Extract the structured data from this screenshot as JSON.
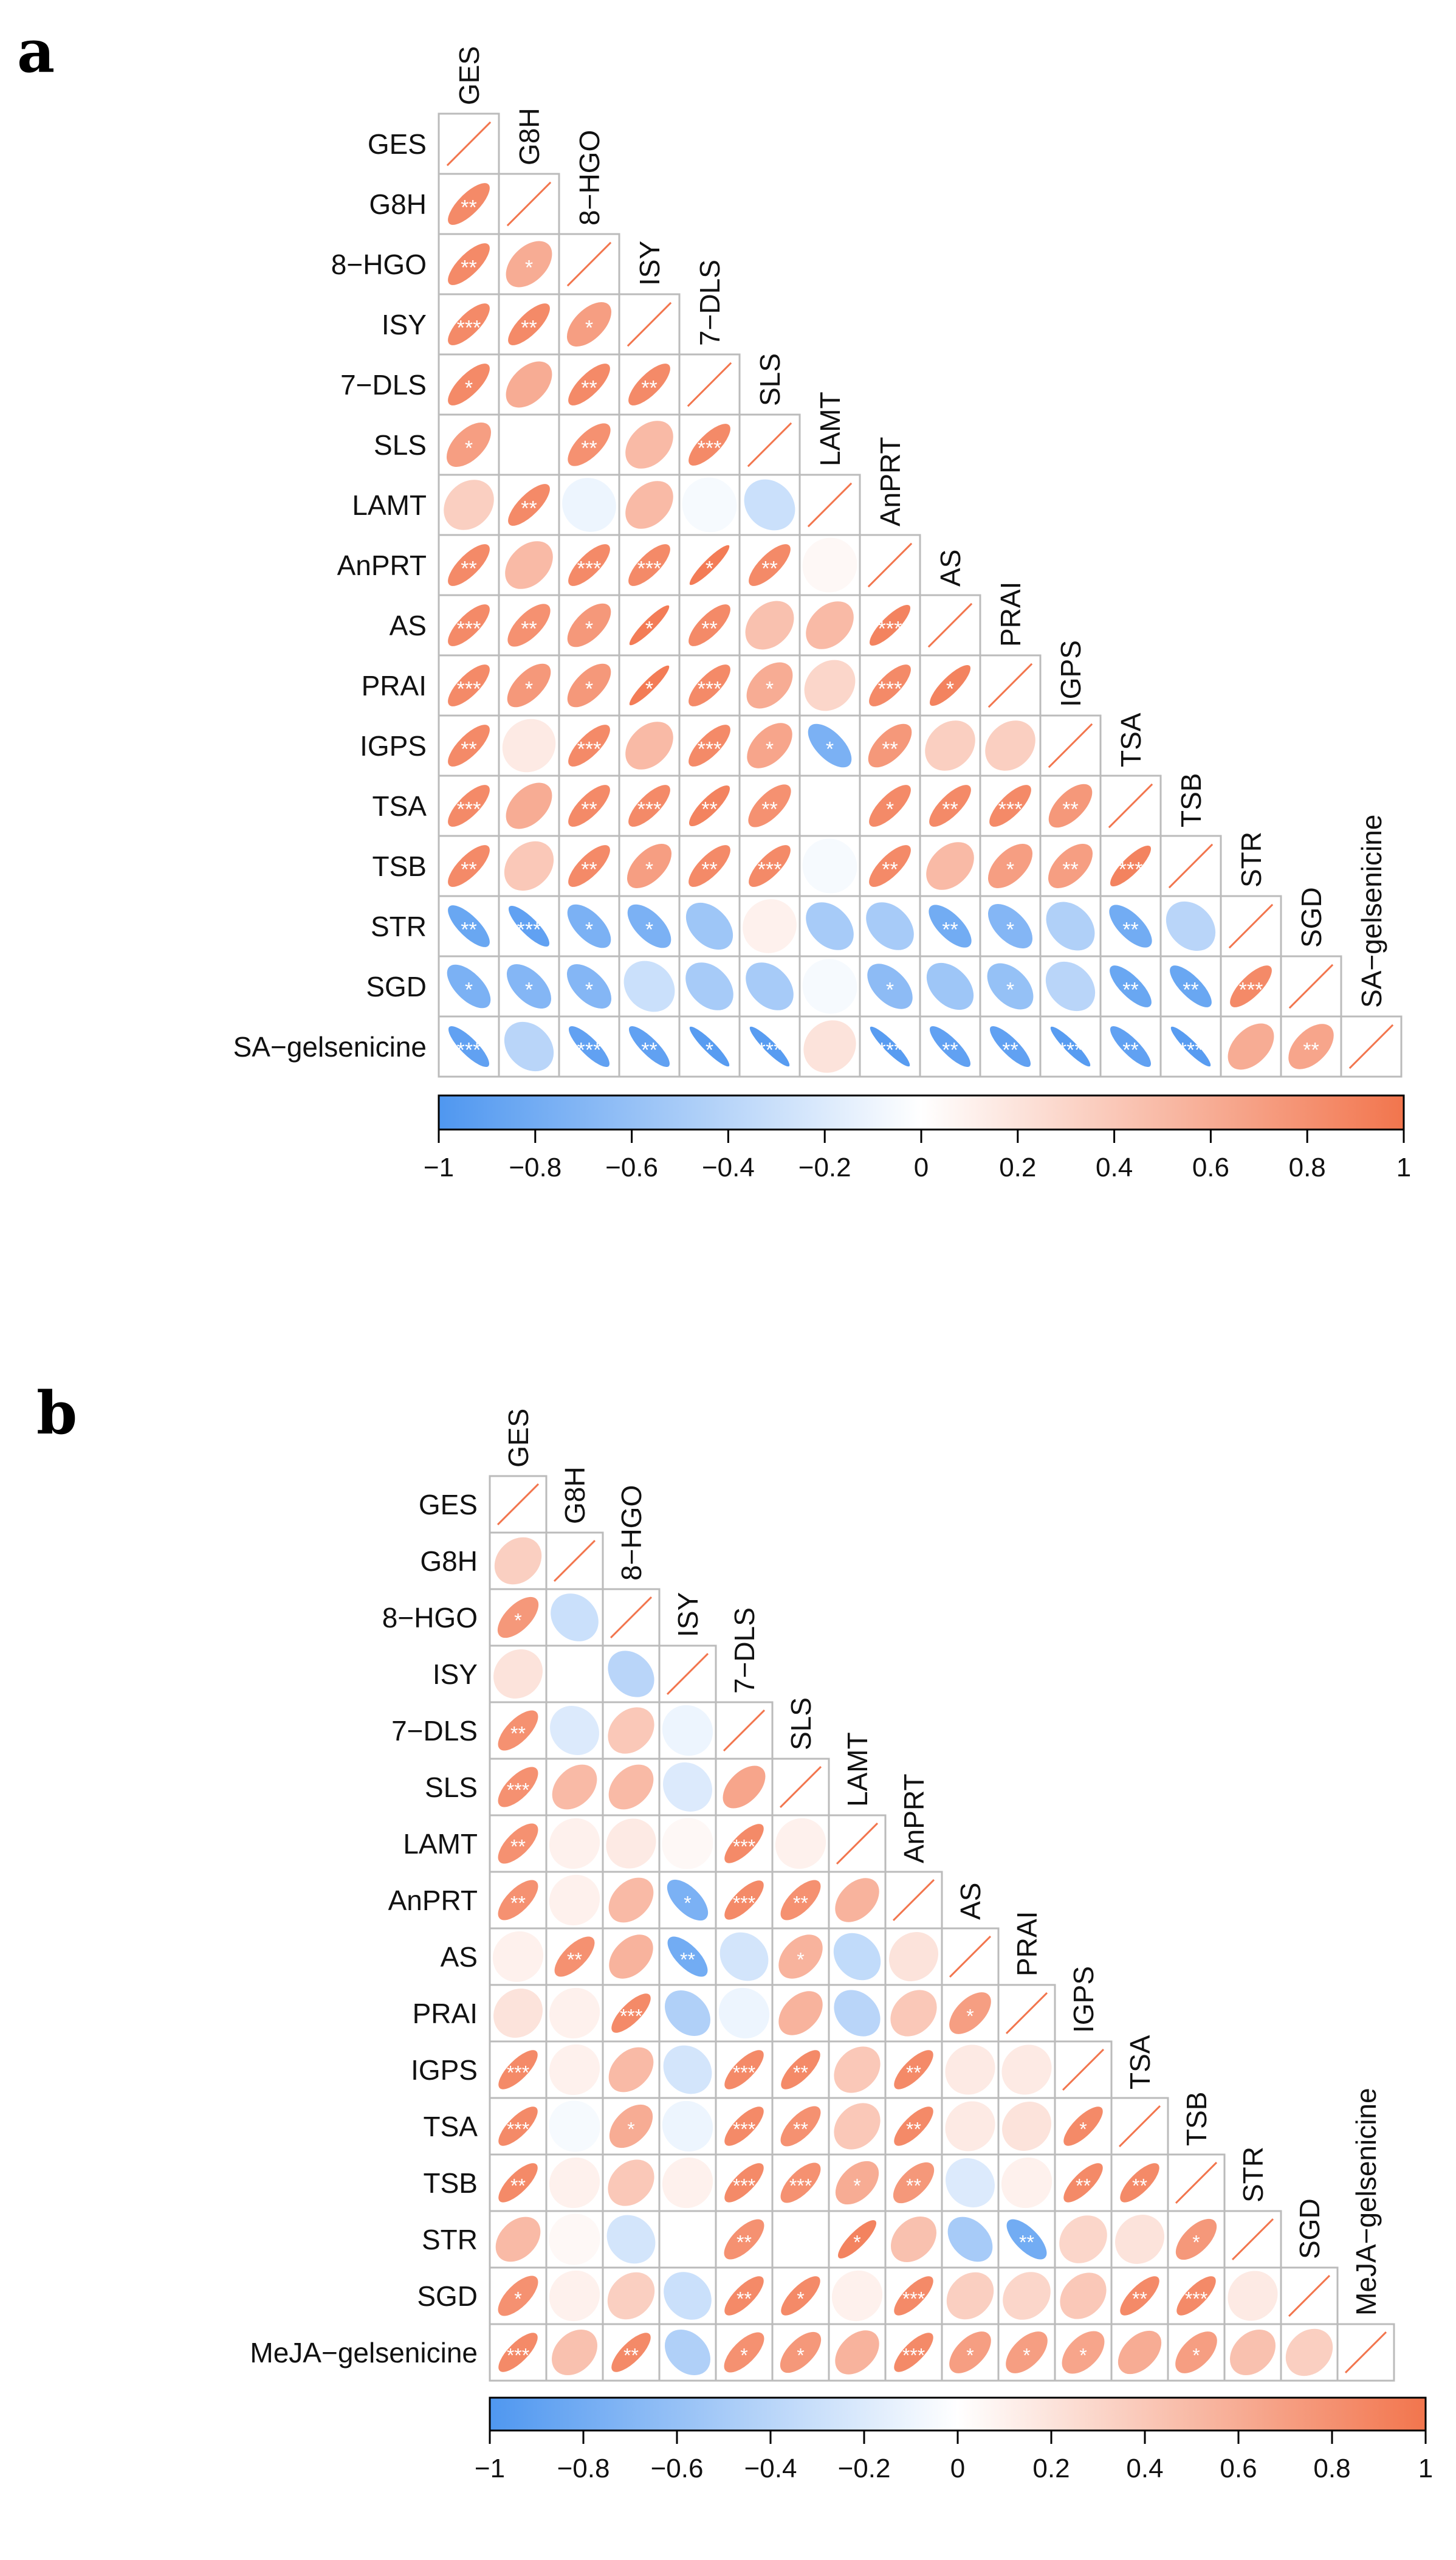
{
  "palette": {
    "neg": "#4f97f0",
    "mid": "#ffffff",
    "pos": "#f2754d",
    "grid": "#bbbbbb",
    "diag": "#f2754d"
  },
  "chart_data": [
    {
      "type": "heatmap",
      "panel_label": "a",
      "variables": [
        "GES",
        "G8H",
        "8−HGO",
        "ISY",
        "7−DLS",
        "SLS",
        "LAMT",
        "AnPRT",
        "AS",
        "PRAI",
        "IGPS",
        "TSA",
        "TSB",
        "STR",
        "SGD",
        "SA−gelsenicine"
      ],
      "colorbar_ticks": [
        "−1",
        "−0.8",
        "−0.6",
        "−0.4",
        "−0.2",
        "0",
        "0.2",
        "0.4",
        "0.6",
        "0.8",
        "1"
      ],
      "colorbar_range": [
        -1,
        1
      ],
      "rows": [
        [],
        [
          0.85
        ],
        [
          0.85,
          0.6
        ],
        [
          0.85,
          0.85,
          0.7
        ],
        [
          0.85,
          0.6,
          0.85,
          0.85
        ],
        [
          0.7,
          0.0,
          0.8,
          0.5,
          0.85
        ],
        [
          0.35,
          0.85,
          -0.1,
          0.5,
          -0.05,
          -0.3
        ],
        [
          0.85,
          0.5,
          0.85,
          0.85,
          0.95,
          0.85,
          0.05
        ],
        [
          0.85,
          0.8,
          0.75,
          0.95,
          0.85,
          0.45,
          0.5,
          0.9
        ],
        [
          0.85,
          0.75,
          0.75,
          0.95,
          0.85,
          0.6,
          0.3,
          0.85,
          0.9
        ],
        [
          0.85,
          0.15,
          0.85,
          0.5,
          0.85,
          0.65,
          -0.75,
          0.75,
          0.35,
          0.35
        ],
        [
          0.85,
          0.6,
          0.85,
          0.85,
          0.9,
          0.8,
          0.0,
          0.85,
          0.85,
          0.85,
          0.75
        ],
        [
          0.85,
          0.4,
          0.85,
          0.7,
          0.85,
          0.85,
          -0.05,
          0.85,
          0.5,
          0.7,
          0.7,
          0.9
        ],
        [
          -0.85,
          -0.9,
          -0.75,
          -0.75,
          -0.55,
          0.1,
          -0.5,
          -0.5,
          -0.8,
          -0.7,
          -0.45,
          -0.8,
          -0.4
        ],
        [
          -0.75,
          -0.7,
          -0.7,
          -0.3,
          -0.5,
          -0.5,
          -0.05,
          -0.65,
          -0.55,
          -0.6,
          -0.4,
          -0.85,
          -0.85,
          0.85
        ],
        [
          -0.9,
          -0.4,
          -0.9,
          -0.9,
          -0.95,
          -0.95,
          0.2,
          -0.95,
          -0.9,
          -0.9,
          -0.95,
          -0.9,
          -0.95,
          0.6,
          0.65
        ]
      ],
      "stars": [
        [],
        [
          "**"
        ],
        [
          "**",
          "*"
        ],
        [
          "***",
          "**",
          "*"
        ],
        [
          "*",
          "",
          "**",
          "**"
        ],
        [
          "*",
          "",
          "**",
          "",
          "***"
        ],
        [
          "",
          "**",
          "",
          "",
          "",
          ""
        ],
        [
          "**",
          "",
          "***",
          "***",
          "*",
          "**",
          ""
        ],
        [
          "***",
          "**",
          "*",
          "*",
          "**",
          "",
          "",
          "***"
        ],
        [
          "***",
          "*",
          "*",
          "*",
          "***",
          "*",
          "",
          "***",
          "*"
        ],
        [
          "**",
          "",
          "***",
          "",
          "***",
          "*",
          "*",
          "**",
          "",
          ""
        ],
        [
          "***",
          "",
          "**",
          "***",
          "**",
          "**",
          "",
          "*",
          "**",
          "***",
          "**"
        ],
        [
          "**",
          "",
          "**",
          "*",
          "**",
          "***",
          "",
          "**",
          "",
          "*",
          "**",
          "***"
        ],
        [
          "**",
          "***",
          "*",
          "*",
          "",
          "",
          "",
          "",
          "**",
          "*",
          "",
          "**",
          ""
        ],
        [
          "*",
          "*",
          "*",
          "",
          "",
          "",
          "",
          "*",
          "",
          "*",
          "",
          "**",
          "**",
          "***"
        ],
        [
          "***",
          "",
          "***",
          "**",
          "*",
          "***",
          "",
          "***",
          "**",
          "**",
          "***",
          "**",
          "***",
          "",
          "**"
        ]
      ]
    },
    {
      "type": "heatmap",
      "panel_label": "b",
      "variables": [
        "GES",
        "G8H",
        "8−HGO",
        "ISY",
        "7−DLS",
        "SLS",
        "LAMT",
        "AnPRT",
        "AS",
        "PRAI",
        "IGPS",
        "TSA",
        "TSB",
        "STR",
        "SGD",
        "MeJA−gelsenicine"
      ],
      "colorbar_ticks": [
        "−1",
        "−0.8",
        "−0.6",
        "−0.4",
        "−0.2",
        "0",
        "0.2",
        "0.4",
        "0.6",
        "0.8",
        "1"
      ],
      "colorbar_range": [
        -1,
        1
      ],
      "rows": [
        [],
        [
          0.35
        ],
        [
          0.75,
          -0.3
        ],
        [
          0.2,
          0.0,
          -0.4
        ],
        [
          0.8,
          -0.2,
          0.4,
          -0.1
        ],
        [
          0.8,
          0.5,
          0.5,
          -0.2,
          0.65
        ],
        [
          0.8,
          0.1,
          0.15,
          0.05,
          0.85,
          0.1
        ],
        [
          0.8,
          0.1,
          0.5,
          -0.75,
          0.85,
          0.8,
          0.55
        ],
        [
          0.1,
          0.8,
          0.55,
          -0.8,
          -0.25,
          0.55,
          -0.35,
          0.2
        ],
        [
          0.2,
          0.1,
          0.85,
          -0.45,
          -0.1,
          0.55,
          -0.4,
          0.4,
          0.7
        ],
        [
          0.85,
          0.1,
          0.5,
          -0.25,
          0.85,
          0.85,
          0.4,
          0.85,
          0.15,
          0.15
        ],
        [
          0.85,
          -0.05,
          0.6,
          -0.1,
          0.85,
          0.8,
          0.4,
          0.85,
          0.15,
          0.2,
          0.85
        ],
        [
          0.85,
          0.1,
          0.4,
          0.1,
          0.85,
          0.8,
          0.6,
          0.75,
          -0.2,
          0.1,
          0.85,
          0.85
        ],
        [
          0.5,
          0.05,
          -0.25,
          0.0,
          0.8,
          0.0,
          0.9,
          0.45,
          -0.5,
          -0.8,
          0.3,
          0.2,
          0.75
        ],
        [
          0.8,
          0.1,
          0.35,
          -0.3,
          0.85,
          0.85,
          0.1,
          0.85,
          0.35,
          0.3,
          0.4,
          0.85,
          0.85,
          0.15
        ],
        [
          0.85,
          0.45,
          0.85,
          -0.45,
          0.8,
          0.75,
          0.55,
          0.85,
          0.7,
          0.7,
          0.65,
          0.6,
          0.7,
          0.45,
          0.35
        ]
      ],
      "stars": [
        [],
        [
          ""
        ],
        [
          "*",
          ""
        ],
        [
          "",
          "",
          ""
        ],
        [
          "**",
          "",
          "",
          ""
        ],
        [
          "***",
          "",
          "",
          "",
          ""
        ],
        [
          "**",
          "",
          "",
          "",
          "***",
          ""
        ],
        [
          "**",
          "",
          "",
          "*",
          "***",
          "**",
          ""
        ],
        [
          "",
          "**",
          "",
          "**",
          "",
          "*",
          "",
          ""
        ],
        [
          "",
          "",
          "***",
          "",
          "",
          "",
          "",
          "",
          "*"
        ],
        [
          "***",
          "",
          "",
          "",
          "***",
          "**",
          "",
          "**",
          "",
          ""
        ],
        [
          "***",
          "",
          "*",
          "",
          "***",
          "**",
          "",
          "**",
          "",
          "",
          "*"
        ],
        [
          "**",
          "",
          "",
          "",
          "***",
          "***",
          "*",
          "**",
          "",
          "",
          "**",
          "**"
        ],
        [
          "",
          "",
          "",
          "",
          "**",
          "",
          "*",
          "",
          "",
          "**",
          "",
          "",
          "*"
        ],
        [
          "*",
          "",
          "",
          "",
          "**",
          "*",
          "",
          "***",
          "",
          "",
          "",
          "**",
          "***",
          ""
        ],
        [
          "***",
          "",
          "**",
          "",
          "*",
          "*",
          "",
          "***",
          "*",
          "*",
          "*",
          "",
          "*",
          "",
          ""
        ]
      ]
    }
  ]
}
